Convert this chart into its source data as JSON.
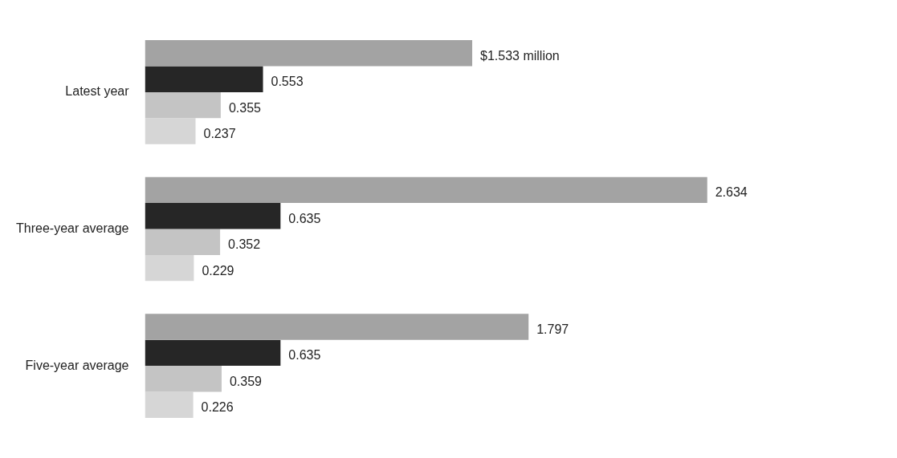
{
  "chart_data": {
    "type": "bar",
    "orientation": "horizontal",
    "categories": [
      "Latest year",
      "Three-year average",
      "Five-year average"
    ],
    "series": [
      {
        "color": "#a3a3a3",
        "values": [
          1.533,
          2.634,
          1.797
        ],
        "value_labels": [
          "$1.533 million",
          "2.634",
          "1.797"
        ]
      },
      {
        "color": "#262626",
        "values": [
          0.553,
          0.635,
          0.635
        ],
        "value_labels": [
          "0.553",
          "0.635",
          "0.635"
        ]
      },
      {
        "color": "#c4c4c4",
        "values": [
          0.355,
          0.352,
          0.359
        ],
        "value_labels": [
          "0.355",
          "0.352",
          "0.359"
        ]
      },
      {
        "color": "#d6d6d6",
        "values": [
          0.237,
          0.229,
          0.226
        ],
        "value_labels": [
          "0.237",
          "0.229",
          "0.226"
        ]
      }
    ]
  }
}
